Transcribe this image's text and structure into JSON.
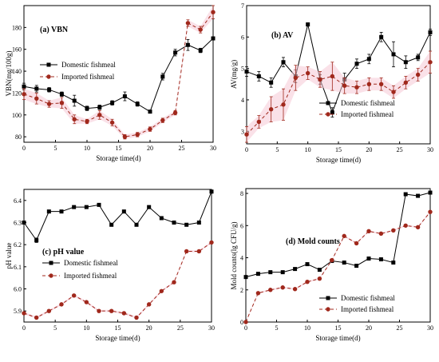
{
  "chart_data": [
    {
      "type": "line",
      "title": "(a) VBN",
      "xlabel": "Storage time(d)",
      "ylabel": "VBN(mg/100g)",
      "xlim": [
        0,
        30
      ],
      "ylim": [
        75,
        200
      ],
      "xticks": [
        0,
        5,
        10,
        15,
        20,
        25,
        30
      ],
      "yticks": [
        80,
        100,
        120,
        140,
        160,
        180
      ],
      "legend": "center-left",
      "series": [
        {
          "name": "Domestic fishmeal",
          "color": "#000000",
          "marker": "square",
          "style": "solid",
          "x": [
            0,
            2,
            4,
            6,
            8,
            10,
            12,
            14,
            16,
            18,
            20,
            22,
            24,
            26,
            28,
            30
          ],
          "y": [
            126,
            124,
            123,
            119,
            113,
            106,
            107,
            111,
            117,
            110,
            103,
            135,
            157,
            164,
            159,
            170
          ],
          "err": [
            3,
            3,
            2,
            2,
            5,
            2,
            2,
            2,
            4,
            2,
            1,
            3,
            3,
            5,
            2,
            1
          ]
        },
        {
          "name": "Imported fishmeal",
          "color": "#a0281c",
          "marker": "circle",
          "style": "dashed",
          "x": [
            0,
            2,
            4,
            6,
            8,
            10,
            12,
            14,
            16,
            18,
            20,
            22,
            24,
            26,
            28,
            30
          ],
          "y": [
            119,
            115,
            110,
            111,
            96,
            94,
            100,
            93,
            80,
            82,
            87,
            95,
            102,
            184,
            178,
            194
          ],
          "err": [
            5,
            5,
            3,
            5,
            4,
            2,
            4,
            3,
            2,
            2,
            2,
            2,
            2,
            3,
            3,
            6
          ]
        }
      ]
    },
    {
      "type": "line",
      "title": "(b) AV",
      "xlabel": "Storage time(d)",
      "ylabel": "AV(mg/g)",
      "xlim": [
        0,
        30
      ],
      "ylim": [
        2.6,
        7.0
      ],
      "xticks": [
        0,
        5,
        10,
        15,
        20,
        25,
        30
      ],
      "yticks": [
        3,
        4,
        5,
        6,
        7
      ],
      "legend": "center-right",
      "series": [
        {
          "name": "Domestic fishmeal",
          "color": "#000000",
          "marker": "square",
          "style": "solid",
          "x": [
            0,
            2,
            4,
            6,
            8,
            10,
            12,
            14,
            16,
            18,
            20,
            22,
            24,
            26,
            28,
            30
          ],
          "y": [
            4.9,
            4.75,
            4.55,
            5.2,
            4.75,
            6.4,
            4.65,
            3.6,
            4.65,
            5.15,
            5.3,
            6.0,
            5.45,
            5.2,
            5.35,
            6.15
          ],
          "err": [
            0.15,
            0.15,
            0.15,
            0.15,
            0.2,
            0.05,
            0.15,
            0.15,
            0.2,
            0.15,
            0.15,
            0.15,
            0.4,
            0.2,
            0.1,
            0.1
          ]
        },
        {
          "name": "Imported fishmeal",
          "color": "#a0281c",
          "marker": "circle",
          "style": "dashed",
          "x": [
            0,
            2,
            4,
            6,
            8,
            10,
            12,
            14,
            16,
            18,
            20,
            22,
            24,
            26,
            28,
            30
          ],
          "y": [
            2.9,
            3.3,
            3.7,
            3.85,
            4.7,
            4.85,
            4.65,
            4.75,
            4.45,
            4.4,
            4.5,
            4.5,
            4.25,
            4.55,
            4.8,
            5.2
          ],
          "err": [
            0.25,
            0.2,
            0.4,
            0.5,
            0.4,
            0.2,
            0.25,
            0.45,
            0.25,
            0.2,
            0.2,
            0.2,
            0.2,
            0.2,
            0.2,
            0.35
          ]
        }
      ]
    },
    {
      "type": "line",
      "title": "(c) pH value",
      "xlabel": "Storage time(d)",
      "ylabel": "pH value",
      "xlim": [
        0,
        30
      ],
      "ylim": [
        5.85,
        6.45
      ],
      "xticks": [
        0,
        5,
        10,
        15,
        20,
        25,
        30
      ],
      "yticks": [
        5.9,
        6.0,
        6.1,
        6.2,
        6.3,
        6.4
      ],
      "legend": "center-left",
      "series": [
        {
          "name": "Domestic fishmeal",
          "color": "#000000",
          "marker": "square",
          "style": "solid",
          "x": [
            0,
            2,
            4,
            6,
            8,
            10,
            12,
            14,
            16,
            18,
            20,
            22,
            24,
            26,
            28,
            30
          ],
          "y": [
            6.3,
            6.22,
            6.35,
            6.35,
            6.37,
            6.37,
            6.38,
            6.29,
            6.35,
            6.29,
            6.37,
            6.32,
            6.3,
            6.29,
            6.3,
            6.44
          ],
          "err": [
            0.005,
            0.01,
            0.005,
            0.005,
            0.005,
            0.005,
            0.005,
            0.005,
            0.005,
            0.005,
            0.005,
            0.005,
            0.005,
            0.005,
            0.005,
            0.005
          ]
        },
        {
          "name": "Imported fishmeal",
          "color": "#a0281c",
          "marker": "circle",
          "style": "dashed",
          "x": [
            0,
            2,
            4,
            6,
            8,
            10,
            12,
            14,
            16,
            18,
            20,
            22,
            24,
            26,
            28,
            30
          ],
          "y": [
            5.89,
            5.87,
            5.9,
            5.93,
            5.97,
            5.94,
            5.9,
            5.9,
            5.89,
            5.87,
            5.93,
            5.99,
            6.03,
            6.17,
            6.17,
            6.21
          ],
          "err": [
            0.005,
            0.005,
            0.005,
            0.005,
            0.005,
            0.005,
            0.005,
            0.005,
            0.005,
            0.005,
            0.005,
            0.005,
            0.005,
            0.005,
            0.005,
            0.005
          ]
        }
      ]
    },
    {
      "type": "line",
      "title": "(d) Mold counts",
      "xlabel": "Storage time(d)",
      "ylabel": "Mold counts(lg CFU/g)",
      "xlim": [
        0,
        30
      ],
      "ylim": [
        0,
        8.3
      ],
      "xticks": [
        0,
        5,
        10,
        15,
        20,
        25,
        30
      ],
      "yticks": [
        0,
        2,
        4,
        6,
        8
      ],
      "legend": "bottom-right",
      "series": [
        {
          "name": "Domestic fishmeal",
          "color": "#000000",
          "marker": "square",
          "style": "solid",
          "x": [
            0,
            2,
            4,
            6,
            8,
            10,
            12,
            14,
            16,
            18,
            20,
            22,
            24,
            26,
            28,
            30
          ],
          "y": [
            2.8,
            3.0,
            3.1,
            3.1,
            3.3,
            3.6,
            3.25,
            3.8,
            3.7,
            3.5,
            3.95,
            3.9,
            3.7,
            7.95,
            7.85,
            8.05
          ],
          "err": [
            0.05,
            0.05,
            0.05,
            0.05,
            0.05,
            0.05,
            0.05,
            0.05,
            0.05,
            0.05,
            0.05,
            0.05,
            0.05,
            0.05,
            0.05,
            0.05
          ]
        },
        {
          "name": "Imported fishmeal",
          "color": "#a0281c",
          "marker": "circle",
          "style": "dashed",
          "x": [
            0,
            2,
            4,
            6,
            8,
            10,
            12,
            14,
            16,
            18,
            20,
            22,
            24,
            26,
            28,
            30
          ],
          "y": [
            0.0,
            1.8,
            2.0,
            2.15,
            2.05,
            2.5,
            2.7,
            3.85,
            5.35,
            4.9,
            5.65,
            5.5,
            5.7,
            6.0,
            5.9,
            6.85
          ],
          "err": [
            0.05,
            0.05,
            0.05,
            0.05,
            0.05,
            0.05,
            0.05,
            0.05,
            0.05,
            0.05,
            0.05,
            0.05,
            0.05,
            0.05,
            0.05,
            0.05
          ]
        }
      ]
    }
  ]
}
